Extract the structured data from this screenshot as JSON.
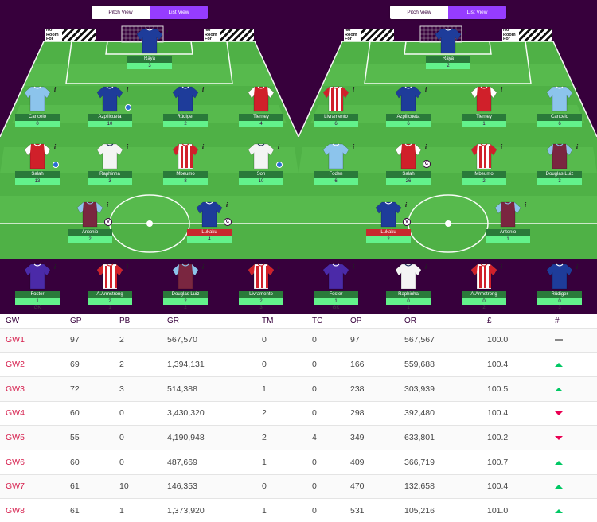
{
  "colors": {
    "accent": "#963cff",
    "brand": "#37003c",
    "pitch": "#4fb146",
    "up": "#01c864",
    "down": "#e90052"
  },
  "views": {
    "pitch": "Pitch View",
    "list": "List View"
  },
  "ad_text": "No Room For Racism",
  "left": {
    "gk": {
      "name": "Raya",
      "pts": "3",
      "kit": "blue"
    },
    "defenders": [
      {
        "name": "Cancelo",
        "pts": "0",
        "kit": "sky"
      },
      {
        "name": "Azpilicueta",
        "pts": "10",
        "kit": "blue",
        "mini": true
      },
      {
        "name": "Rüdiger",
        "pts": "2",
        "kit": "blue"
      },
      {
        "name": "Tierney",
        "pts": "4",
        "kit": "red"
      }
    ],
    "midfielders": [
      {
        "name": "Salah",
        "pts": "13",
        "kit": "red",
        "mini": true
      },
      {
        "name": "Raphinha",
        "pts": "3",
        "kit": "white"
      },
      {
        "name": "Mbeumo",
        "pts": "8",
        "kit": "stripe"
      },
      {
        "name": "Son",
        "pts": "10",
        "kit": "white",
        "mini": true
      }
    ],
    "forwards": [
      {
        "name": "Antonio",
        "pts": "2",
        "kit": "claret",
        "badge": "V"
      },
      {
        "name": "Lukaku",
        "pts": "4",
        "kit": "blue",
        "badge": "C",
        "red": true
      }
    ],
    "bench": [
      {
        "name": "Foster",
        "pts": "1",
        "kit": "purple",
        "pos": "GK"
      },
      {
        "name": "A.Armstrong",
        "pts": "2",
        "kit": "stripe",
        "pos": "1"
      },
      {
        "name": "Douglas Luiz",
        "pts": "2",
        "kit": "claret",
        "pos": "2"
      },
      {
        "name": "Livramento",
        "pts": "2",
        "kit": "stripe",
        "pos": "3"
      }
    ]
  },
  "right": {
    "gk": {
      "name": "Raya",
      "pts": "2",
      "kit": "blue"
    },
    "defenders": [
      {
        "name": "Livramento",
        "pts": "6",
        "kit": "stripe"
      },
      {
        "name": "Azpilicueta",
        "pts": "6",
        "kit": "blue"
      },
      {
        "name": "Tierney",
        "pts": "1",
        "kit": "red"
      },
      {
        "name": "Cancelo",
        "pts": "6",
        "kit": "sky"
      }
    ],
    "midfielders": [
      {
        "name": "Foden",
        "pts": "6",
        "kit": "sky"
      },
      {
        "name": "Salah",
        "pts": "26",
        "kit": "red",
        "badge": "C",
        "mini": true
      },
      {
        "name": "Mbeumo",
        "pts": "2",
        "kit": "stripe"
      },
      {
        "name": "Douglas Luiz",
        "pts": "3",
        "kit": "claret"
      }
    ],
    "forwards": [
      {
        "name": "Lukaku",
        "pts": "2",
        "kit": "blue",
        "badge": "V",
        "red": true
      },
      {
        "name": "Antonio",
        "pts": "1",
        "kit": "claret"
      }
    ],
    "bench": [
      {
        "name": "Foster",
        "pts": "1",
        "kit": "purple",
        "pos": "GK"
      },
      {
        "name": "Raphinha",
        "pts": "0",
        "kit": "white",
        "pos": "1"
      },
      {
        "name": "A.Armstrong",
        "pts": "0",
        "kit": "stripe",
        "pos": "2"
      },
      {
        "name": "Rüdiger",
        "pts": "0",
        "kit": "blue",
        "pos": "3"
      }
    ]
  },
  "table": {
    "headers": [
      "GW",
      "GP",
      "PB",
      "GR",
      "TM",
      "TC",
      "OP",
      "OR",
      "£",
      "#"
    ],
    "rows": [
      {
        "gw": "GW1",
        "gp": "97",
        "pb": "2",
        "gr": "567,570",
        "tm": "0",
        "tc": "0",
        "op": "97",
        "or": "567,567",
        "money": "100.0",
        "trend": "same"
      },
      {
        "gw": "GW2",
        "gp": "69",
        "pb": "2",
        "gr": "1,394,131",
        "tm": "0",
        "tc": "0",
        "op": "166",
        "or": "559,688",
        "money": "100.4",
        "trend": "up"
      },
      {
        "gw": "GW3",
        "gp": "72",
        "pb": "3",
        "gr": "514,388",
        "tm": "1",
        "tc": "0",
        "op": "238",
        "or": "303,939",
        "money": "100.5",
        "trend": "up"
      },
      {
        "gw": "GW4",
        "gp": "60",
        "pb": "0",
        "gr": "3,430,320",
        "tm": "2",
        "tc": "0",
        "op": "298",
        "or": "392,480",
        "money": "100.4",
        "trend": "down"
      },
      {
        "gw": "GW5",
        "gp": "55",
        "pb": "0",
        "gr": "4,190,948",
        "tm": "2",
        "tc": "4",
        "op": "349",
        "or": "633,801",
        "money": "100.2",
        "trend": "down"
      },
      {
        "gw": "GW6",
        "gp": "60",
        "pb": "0",
        "gr": "487,669",
        "tm": "1",
        "tc": "0",
        "op": "409",
        "or": "366,719",
        "money": "100.7",
        "trend": "up"
      },
      {
        "gw": "GW7",
        "gp": "61",
        "pb": "10",
        "gr": "146,353",
        "tm": "0",
        "tc": "0",
        "op": "470",
        "or": "132,658",
        "money": "100.4",
        "trend": "up"
      },
      {
        "gw": "GW8",
        "gp": "61",
        "pb": "1",
        "gr": "1,373,920",
        "tm": "1",
        "tc": "0",
        "op": "531",
        "or": "105,216",
        "money": "101.0",
        "trend": "up"
      }
    ]
  }
}
